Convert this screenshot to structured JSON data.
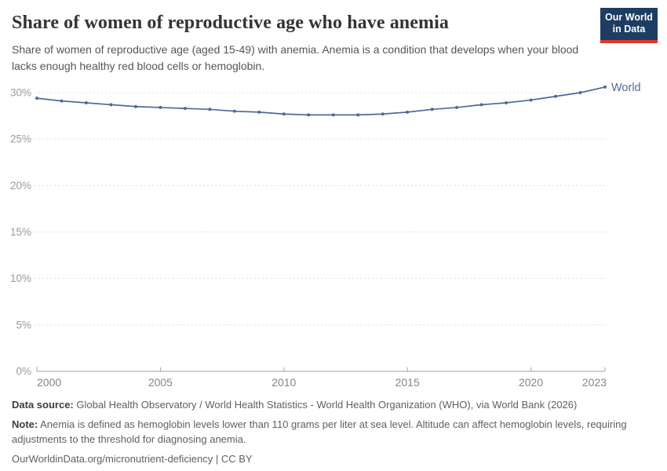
{
  "header": {
    "title": "Share of women of reproductive age who have anemia",
    "subtitle": "Share of women of reproductive age (aged 15-49) with anemia. Anemia is a condition that develops when your blood lacks enough healthy red blood cells or hemoglobin.",
    "logo": {
      "line1": "Our World",
      "line2": "in Data",
      "bg": "#1d3d63",
      "accent": "#e0362d"
    }
  },
  "chart_data": {
    "type": "line",
    "title": "Share of women of reproductive age who have anemia",
    "xlabel": "",
    "ylabel": "",
    "x": [
      2000,
      2001,
      2002,
      2003,
      2004,
      2005,
      2006,
      2007,
      2008,
      2009,
      2010,
      2011,
      2012,
      2013,
      2014,
      2015,
      2016,
      2017,
      2018,
      2019,
      2020,
      2021,
      2022,
      2023
    ],
    "series": [
      {
        "name": "World",
        "color": "#4c6a9c",
        "values": [
          29.4,
          29.1,
          28.9,
          28.7,
          28.5,
          28.4,
          28.3,
          28.2,
          28.0,
          27.9,
          27.7,
          27.6,
          27.6,
          27.6,
          27.7,
          27.9,
          28.2,
          28.4,
          28.7,
          28.9,
          29.2,
          29.6,
          30.0,
          30.6
        ]
      }
    ],
    "x_ticks": [
      2000,
      2005,
      2010,
      2015,
      2020,
      2023
    ],
    "y_ticks": [
      0,
      5,
      10,
      15,
      20,
      25,
      30
    ],
    "y_suffix": "%",
    "xlim": [
      2000,
      2023
    ],
    "ylim": [
      0,
      31
    ],
    "grid": "horizontal-dashed",
    "legend": "end-of-line-label"
  },
  "footer": {
    "datasource_label": "Data source:",
    "datasource_text": "Global Health Observatory / World Health Statistics - World Health Organization (WHO), via World Bank (2026)",
    "note_label": "Note:",
    "note_text": "Anemia is defined as hemoglobin levels lower than 110 grams per liter at sea level. Altitude can affect hemoglobin levels, requiring adjustments to the threshold for diagnosing anemia.",
    "url": "OurWorldinData.org/micronutrient-deficiency | CC BY"
  }
}
